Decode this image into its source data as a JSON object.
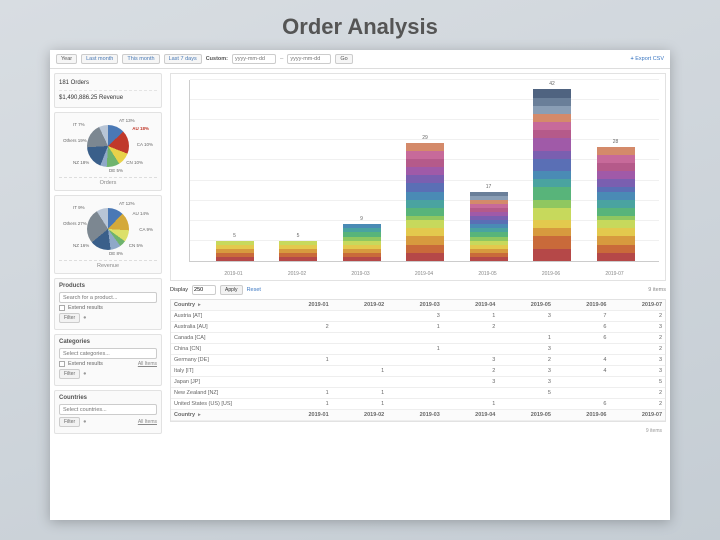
{
  "title": "Order Analysis",
  "filterbar": {
    "year": "Year",
    "last_month": "Last month",
    "this_month": "This month",
    "last_7": "Last 7 days",
    "custom": "Custom:",
    "placeholder": "yyyy-mm-dd",
    "go": "Go",
    "export": "Export CSV"
  },
  "stats": {
    "orders": "181 Orders",
    "revenue": "$1,490,886.25 Revenue"
  },
  "pies": [
    {
      "title": "Orders",
      "slices": [
        {
          "c": "#4a78b5",
          "p": 13
        },
        {
          "c": "#c0392b",
          "p": 18
        },
        {
          "c": "#e8d24a",
          "p": 10
        },
        {
          "c": "#6fb36d",
          "p": 10
        },
        {
          "c": "#8fa8c8",
          "p": 5
        },
        {
          "c": "#3a5f8a",
          "p": 18
        },
        {
          "c": "#7c8791",
          "p": 19
        },
        {
          "c": "#b8c5d6",
          "p": 7
        }
      ],
      "labels": [
        "AT\n13%",
        "AU\n18%",
        "CA\n10%",
        "CN\n10%",
        "DE\n5%",
        "NZ\n18%",
        "Others\n19%",
        "IT\n7%"
      ]
    },
    {
      "title": "Revenue",
      "slices": [
        {
          "c": "#4a78b5",
          "p": 12
        },
        {
          "c": "#d4a93a",
          "p": 14
        },
        {
          "c": "#dce06a",
          "p": 9
        },
        {
          "c": "#6fb36d",
          "p": 5
        },
        {
          "c": "#8fa8c8",
          "p": 8
        },
        {
          "c": "#3a5f8a",
          "p": 16
        },
        {
          "c": "#7c8791",
          "p": 27
        },
        {
          "c": "#b8c5d6",
          "p": 9
        }
      ],
      "labels": [
        "AT\n12%",
        "AU\n14%",
        "CA\n9%",
        "CN\n5%",
        "DE\n8%",
        "NZ\n16%",
        "Others\n27%",
        "IT\n9%"
      ]
    }
  ],
  "chart": {
    "ymax": 45,
    "grid_steps": 9,
    "categories": [
      "2019-01",
      "2019-02",
      "2019-03",
      "2019-04",
      "2019-05",
      "2019-06",
      "2019-07"
    ],
    "totals": [
      5,
      5,
      9,
      29,
      17,
      42,
      28
    ],
    "bar_colors": [
      "#b54848",
      "#c96a3a",
      "#d79a3e",
      "#e3c94d",
      "#c7d95c",
      "#8fc760",
      "#58b47a",
      "#4aa3a0",
      "#4a8bb5",
      "#5a6fb5",
      "#7a5fb0",
      "#a05aa8",
      "#b55a8a",
      "#c76a9a",
      "#d48a6a",
      "#8a9eb5",
      "#6a7f99",
      "#4f6380"
    ],
    "stacks": [
      [
        1,
        1,
        1,
        1,
        1
      ],
      [
        1,
        1,
        1,
        1,
        1
      ],
      [
        1,
        1,
        1,
        1,
        1,
        1,
        1,
        1,
        1
      ],
      [
        2,
        2,
        2,
        2,
        2,
        1,
        2,
        2,
        2,
        2,
        2,
        2,
        2,
        2,
        2
      ],
      [
        1,
        1,
        1,
        1,
        1,
        1,
        1,
        1,
        1,
        1,
        1,
        1,
        1,
        1,
        1,
        1,
        1
      ],
      [
        3,
        3,
        2,
        2,
        3,
        2,
        3,
        2,
        2,
        3,
        2,
        3,
        2,
        2,
        2,
        2,
        2,
        2
      ],
      [
        2,
        2,
        2,
        2,
        2,
        1,
        2,
        2,
        2,
        1,
        2,
        2,
        2,
        2,
        2
      ]
    ]
  },
  "filters": {
    "extend": "Extend results",
    "filter_btn": "Filter",
    "all_items": "All Items",
    "products": {
      "title": "Products",
      "placeholder": "Search for a product..."
    },
    "categories": {
      "title": "Categories",
      "placeholder": "Select categories..."
    },
    "countries": {
      "title": "Countries",
      "placeholder": "Select countries..."
    }
  },
  "table": {
    "display": "Display",
    "display_count": "250",
    "apply": "Apply",
    "reset": "Reset",
    "items_note": "9 items",
    "header": [
      "Country",
      "2019-01",
      "2019-02",
      "2019-03",
      "2019-04",
      "2019-05",
      "2019-06",
      "2019-07"
    ],
    "rows": [
      [
        "Austria [AT]",
        "",
        "",
        "3",
        "1",
        "3",
        "7",
        "2"
      ],
      [
        "Australia [AU]",
        "2",
        "",
        "1",
        "2",
        "",
        "6",
        "3"
      ],
      [
        "Canada [CA]",
        "",
        "",
        "",
        "",
        "1",
        "6",
        "2"
      ],
      [
        "China [CN]",
        "",
        "",
        "1",
        "",
        "3",
        "",
        "2"
      ],
      [
        "Germany [DE]",
        "1",
        "",
        "",
        "3",
        "2",
        "4",
        "3"
      ],
      [
        "Italy [IT]",
        "",
        "1",
        "",
        "2",
        "3",
        "4",
        "3"
      ],
      [
        "Japan [JP]",
        "",
        "",
        "",
        "3",
        "3",
        "",
        "5"
      ],
      [
        "New Zealand [NZ]",
        "1",
        "1",
        "",
        "",
        "5",
        "",
        "2"
      ],
      [
        "United States (US) [US]",
        "1",
        "1",
        "",
        "1",
        "",
        "6",
        "2"
      ]
    ]
  }
}
